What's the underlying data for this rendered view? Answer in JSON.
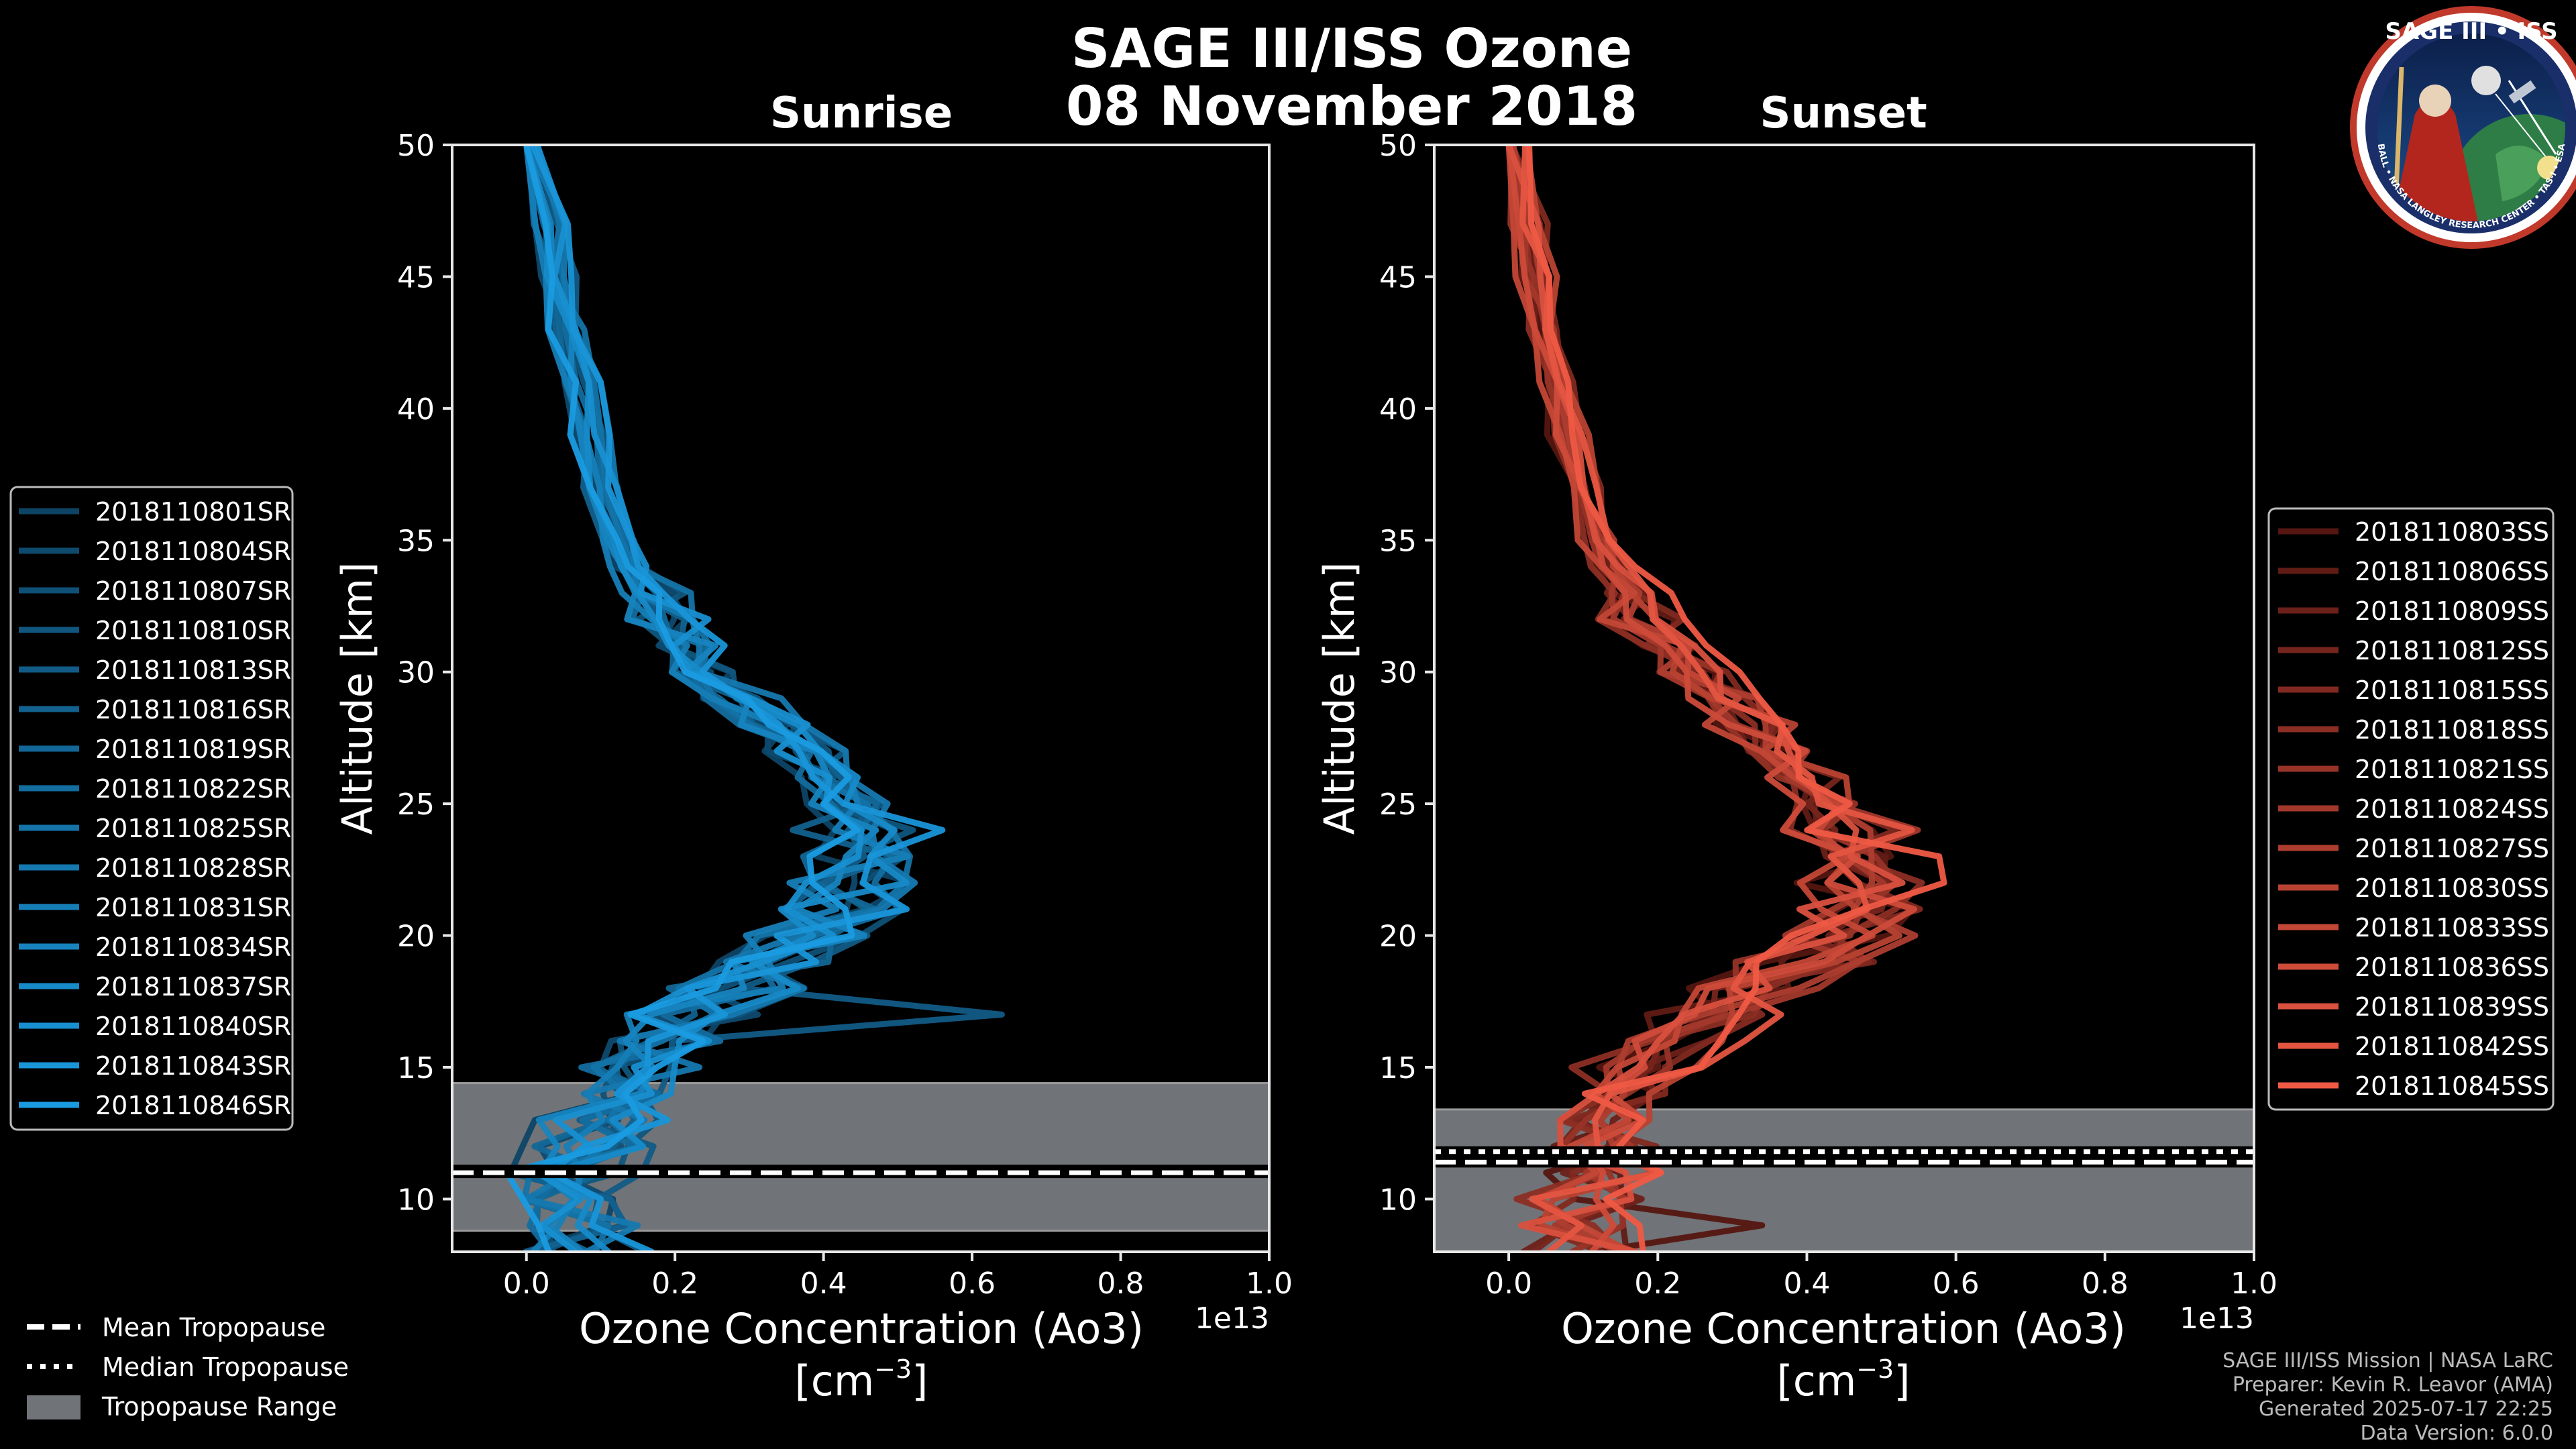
{
  "title_line1": "SAGE III/ISS Ozone",
  "title_line2": "08 November 2018",
  "logo": {
    "top_text": "SAGE III • ISS",
    "ring_text": "BALL • NASA LANGLEY RESEARCH CENTER • TAS-I • ESA",
    "accent": "#c0392b"
  },
  "footer": {
    "line1": "SAGE III/ISS Mission | NASA LaRC",
    "line2": "Preparer: Kevin R. Leavor (AMA)",
    "line3": "Generated 2025-07-17 22:25",
    "line4": "Data Version: 6.0.0"
  },
  "tropopause_legend": {
    "mean": "Mean Tropopause",
    "median": "Median Tropopause",
    "range": "Tropopause Range"
  },
  "chart_data": [
    {
      "type": "line",
      "title": "Sunrise",
      "xlabel": "Ozone Concentration (Ao3)",
      "xunit": "[cm",
      "xunit_sup": "−3",
      "xunit_end": "]",
      "ylabel": "Altitude [km]",
      "offset_label": "1e13",
      "xlim": [
        -0.1,
        1.0
      ],
      "ylim": [
        8,
        50
      ],
      "xticks": [
        "0.0",
        "0.2",
        "0.4",
        "0.6",
        "0.8",
        "1.0"
      ],
      "xtick_values": [
        0.0,
        0.2,
        0.4,
        0.6,
        0.8,
        1.0
      ],
      "yticks": [
        "10",
        "15",
        "20",
        "25",
        "30",
        "35",
        "40",
        "45",
        "50"
      ],
      "ytick_values": [
        10,
        15,
        20,
        25,
        30,
        35,
        40,
        45,
        50
      ],
      "color_dark": "#0b3550",
      "color_light": "#1a9be0",
      "tropopause": {
        "mean": 11.0,
        "median": 11.1,
        "range": [
          8.8,
          14.4
        ]
      },
      "series_names": [
        "2018110801SR",
        "2018110804SR",
        "2018110807SR",
        "2018110810SR",
        "2018110813SR",
        "2018110816SR",
        "2018110819SR",
        "2018110822SR",
        "2018110825SR",
        "2018110828SR",
        "2018110831SR",
        "2018110834SR",
        "2018110837SR",
        "2018110840SR",
        "2018110843SR",
        "2018110846SR"
      ],
      "altitudes": [
        8,
        9,
        10,
        11,
        12,
        13,
        14,
        15,
        16,
        17,
        18,
        19,
        20,
        21,
        22,
        23,
        24,
        25,
        26,
        27,
        28,
        29,
        30,
        31,
        32,
        33,
        34,
        35,
        37,
        39,
        41,
        43,
        45,
        47,
        50
      ],
      "base_profile": [
        0.08,
        0.07,
        0.06,
        0.07,
        0.09,
        0.1,
        0.12,
        0.15,
        0.18,
        0.23,
        0.28,
        0.33,
        0.38,
        0.42,
        0.45,
        0.47,
        0.46,
        0.44,
        0.41,
        0.37,
        0.33,
        0.29,
        0.25,
        0.22,
        0.19,
        0.165,
        0.14,
        0.125,
        0.1,
        0.085,
        0.07,
        0.055,
        0.04,
        0.03,
        0.0
      ],
      "spike": {
        "series": 4,
        "altitude": 17,
        "value": 0.64
      }
    },
    {
      "type": "line",
      "title": "Sunset",
      "xlabel": "Ozone Concentration (Ao3)",
      "xunit": "[cm",
      "xunit_sup": "−3",
      "xunit_end": "]",
      "ylabel": "Altitude [km]",
      "offset_label": "1e13",
      "xlim": [
        -0.1,
        1.0
      ],
      "ylim": [
        8,
        50
      ],
      "xticks": [
        "0.0",
        "0.2",
        "0.4",
        "0.6",
        "0.8",
        "1.0"
      ],
      "xtick_values": [
        0.0,
        0.2,
        0.4,
        0.6,
        0.8,
        1.0
      ],
      "yticks": [
        "10",
        "15",
        "20",
        "25",
        "30",
        "35",
        "40",
        "45",
        "50"
      ],
      "ytick_values": [
        10,
        15,
        20,
        25,
        30,
        35,
        40,
        45,
        50
      ],
      "color_dark": "#3a0a08",
      "color_light": "#ef5a45",
      "tropopause": {
        "mean": 11.4,
        "median": 11.8,
        "range": [
          8.0,
          13.4
        ]
      },
      "series_names": [
        "2018110803SS",
        "2018110806SS",
        "2018110809SS",
        "2018110812SS",
        "2018110815SS",
        "2018110818SS",
        "2018110821SS",
        "2018110824SS",
        "2018110827SS",
        "2018110830SS",
        "2018110833SS",
        "2018110836SS",
        "2018110839SS",
        "2018110842SS",
        "2018110845SS"
      ],
      "altitudes": [
        8,
        9,
        10,
        11,
        12,
        13,
        14,
        15,
        16,
        17,
        18,
        19,
        20,
        21,
        22,
        23,
        24,
        25,
        26,
        27,
        28,
        29,
        30,
        31,
        32,
        33,
        34,
        35,
        37,
        39,
        41,
        43,
        45,
        47,
        50
      ],
      "base_profile": [
        0.1,
        0.09,
        0.1,
        0.12,
        0.13,
        0.14,
        0.15,
        0.18,
        0.22,
        0.27,
        0.33,
        0.4,
        0.45,
        0.48,
        0.49,
        0.48,
        0.46,
        0.43,
        0.4,
        0.36,
        0.32,
        0.28,
        0.245,
        0.21,
        0.185,
        0.16,
        0.14,
        0.12,
        0.095,
        0.08,
        0.065,
        0.05,
        0.035,
        0.025,
        0.0
      ],
      "spike": {
        "series": 0,
        "altitude": 9,
        "value": 0.34
      }
    }
  ]
}
